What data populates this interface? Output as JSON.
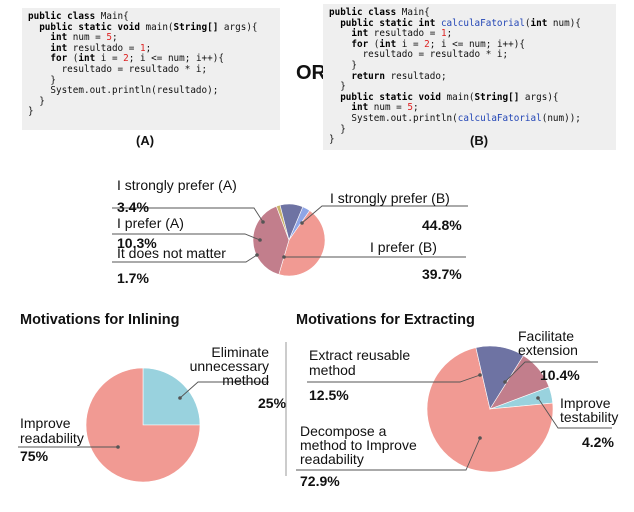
{
  "or_label": "OR",
  "code_a": {
    "caption": "(A)",
    "lines": [
      [
        {
          "t": "public class ",
          "c": "kw"
        },
        {
          "t": "Main{",
          "c": ""
        }
      ],
      [
        {
          "t": "  public static void ",
          "c": "kw"
        },
        {
          "t": "main(",
          "c": ""
        },
        {
          "t": "String[]",
          "c": "kw"
        },
        {
          "t": " args){",
          "c": ""
        }
      ],
      [
        {
          "t": "    int ",
          "c": "kw"
        },
        {
          "t": "num = ",
          "c": ""
        },
        {
          "t": "5",
          "c": "num"
        },
        {
          "t": ";",
          "c": ""
        }
      ],
      [
        {
          "t": "    int ",
          "c": "kw"
        },
        {
          "t": "resultado = ",
          "c": ""
        },
        {
          "t": "1",
          "c": "num"
        },
        {
          "t": ";",
          "c": ""
        }
      ],
      [
        {
          "t": "    for ",
          "c": "kw"
        },
        {
          "t": "(",
          "c": ""
        },
        {
          "t": "int ",
          "c": "kw"
        },
        {
          "t": "i = ",
          "c": ""
        },
        {
          "t": "2",
          "c": "num"
        },
        {
          "t": "; i <= num; i++){",
          "c": ""
        }
      ],
      [
        {
          "t": "      resultado = resultado * i;",
          "c": ""
        }
      ],
      [
        {
          "t": "    }",
          "c": ""
        }
      ],
      [
        {
          "t": "    System.out.println(resultado);",
          "c": ""
        }
      ],
      [
        {
          "t": "  }",
          "c": ""
        }
      ],
      [
        {
          "t": "}",
          "c": ""
        }
      ]
    ]
  },
  "code_b": {
    "caption": "(B)",
    "lines": [
      [
        {
          "t": "public class ",
          "c": "kw"
        },
        {
          "t": "Main{",
          "c": ""
        }
      ],
      [
        {
          "t": "  public static int ",
          "c": "kw"
        },
        {
          "t": "calculaFatorial",
          "c": "fn"
        },
        {
          "t": "(",
          "c": ""
        },
        {
          "t": "int ",
          "c": "kw"
        },
        {
          "t": "num){",
          "c": ""
        }
      ],
      [
        {
          "t": "    int ",
          "c": "kw"
        },
        {
          "t": "resultado = ",
          "c": ""
        },
        {
          "t": "1",
          "c": "num"
        },
        {
          "t": ";",
          "c": ""
        }
      ],
      [
        {
          "t": "    for ",
          "c": "kw"
        },
        {
          "t": "(",
          "c": ""
        },
        {
          "t": "int ",
          "c": "kw"
        },
        {
          "t": "i = ",
          "c": ""
        },
        {
          "t": "2",
          "c": "num"
        },
        {
          "t": "; i <= num; i++){",
          "c": ""
        }
      ],
      [
        {
          "t": "      resultado = resultado * i;",
          "c": ""
        }
      ],
      [
        {
          "t": "    }",
          "c": ""
        }
      ],
      [
        {
          "t": "    return ",
          "c": "kw"
        },
        {
          "t": "resultado;",
          "c": ""
        }
      ],
      [
        {
          "t": "  }",
          "c": ""
        }
      ],
      [
        {
          "t": "  public static void ",
          "c": "kw"
        },
        {
          "t": "main(",
          "c": ""
        },
        {
          "t": "String[]",
          "c": "kw"
        },
        {
          "t": " args){",
          "c": ""
        }
      ],
      [
        {
          "t": "    int ",
          "c": "kw"
        },
        {
          "t": "num = ",
          "c": ""
        },
        {
          "t": "5",
          "c": "num"
        },
        {
          "t": ";",
          "c": ""
        }
      ],
      [
        {
          "t": "    System.out.println(",
          "c": ""
        },
        {
          "t": "calculaFatorial",
          "c": "fn"
        },
        {
          "t": "(num));",
          "c": ""
        }
      ],
      [
        {
          "t": "  }",
          "c": ""
        }
      ],
      [
        {
          "t": "}",
          "c": ""
        }
      ]
    ]
  },
  "chart_data": [
    {
      "type": "pie",
      "title": "",
      "slices": [
        {
          "label": "I strongly prefer (B)",
          "value": 44.8,
          "display": "44.8%",
          "color": "#f19a93"
        },
        {
          "label": "I prefer (B)",
          "value": 39.7,
          "display": "39.7%",
          "color": "#c27e8c"
        },
        {
          "label": "It does not matter",
          "value": 1.7,
          "display": "1.7%",
          "color": "#c9b46b"
        },
        {
          "label": "I prefer (A)",
          "value": 10.3,
          "display": "10.3%",
          "color": "#6e73a3"
        },
        {
          "label": "I strongly prefer (A)",
          "value": 3.4,
          "display": "3.4%",
          "color": "#8fa5e6"
        }
      ]
    },
    {
      "type": "pie",
      "title": "Motivations for Inlining",
      "slices": [
        {
          "label": "Eliminate unnecessary method",
          "value": 25,
          "display": "25%",
          "color": "#99d2de"
        },
        {
          "label": "Improve readability",
          "value": 75,
          "display": "75%",
          "color": "#f19a93"
        }
      ]
    },
    {
      "type": "pie",
      "title": "Motivations for Extracting",
      "slices": [
        {
          "label": "Improve testability",
          "value": 4.2,
          "display": "4.2%",
          "color": "#99d2de"
        },
        {
          "label": "Decompose a method to Improve readability",
          "value": 72.9,
          "display": "72.9%",
          "color": "#f19a93"
        },
        {
          "label": "Extract reusable method",
          "value": 12.5,
          "display": "12.5%",
          "color": "#6e73a3"
        },
        {
          "label": "Facilitate extension",
          "value": 10.4,
          "display": "10.4%",
          "color": "#c27e8c"
        }
      ]
    }
  ]
}
